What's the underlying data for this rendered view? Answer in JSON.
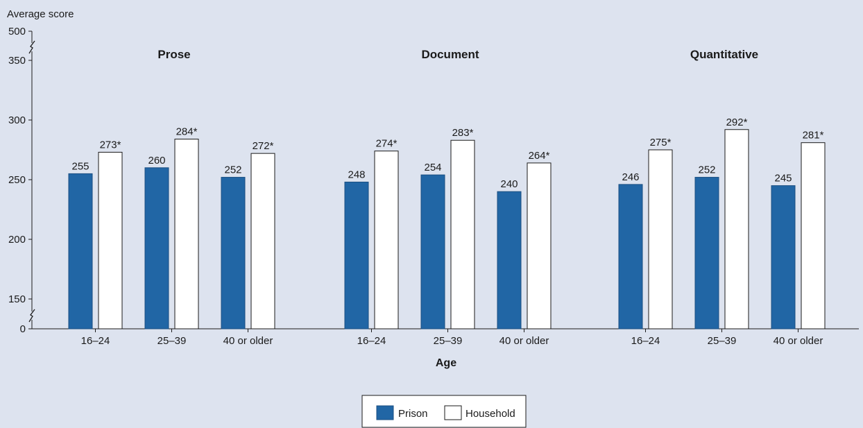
{
  "chart_data": {
    "type": "bar",
    "ylabel": "Average score",
    "xlabel": "Age",
    "y_axis": {
      "ticks": [
        "0",
        "150",
        "200",
        "250",
        "300",
        "350",
        "500"
      ],
      "broken_scale": true,
      "lower_break_between": [
        0,
        150
      ],
      "upper_break_between": [
        350,
        500
      ]
    },
    "categories": [
      "16–24",
      "25–39",
      "40 or older"
    ],
    "panels": [
      {
        "title": "Prose",
        "series": [
          {
            "name": "Prison",
            "values": [
              255,
              260,
              252
            ],
            "labels": [
              "255",
              "260",
              "252"
            ]
          },
          {
            "name": "Household",
            "values": [
              273,
              284,
              272
            ],
            "labels": [
              "273*",
              "284*",
              "272*"
            ]
          }
        ]
      },
      {
        "title": "Document",
        "series": [
          {
            "name": "Prison",
            "values": [
              248,
              254,
              240
            ],
            "labels": [
              "248",
              "254",
              "240"
            ]
          },
          {
            "name": "Household",
            "values": [
              274,
              283,
              264
            ],
            "labels": [
              "274*",
              "283*",
              "264*"
            ]
          }
        ]
      },
      {
        "title": "Quantitative",
        "series": [
          {
            "name": "Prison",
            "values": [
              246,
              252,
              245
            ],
            "labels": [
              "246",
              "252",
              "245"
            ]
          },
          {
            "name": "Household",
            "values": [
              275,
              292,
              281
            ],
            "labels": [
              "275*",
              "292*",
              "281*"
            ]
          }
        ]
      }
    ],
    "legend": {
      "placement": "bottom-center",
      "items": [
        {
          "name": "Prison",
          "color": "#2166a5"
        },
        {
          "name": "Household",
          "color": "#ffffff"
        }
      ]
    },
    "colors": {
      "prison": "#2166a5",
      "household": "#ffffff",
      "background": "#dde3ef",
      "bar_stroke": "#1b4f82"
    }
  }
}
